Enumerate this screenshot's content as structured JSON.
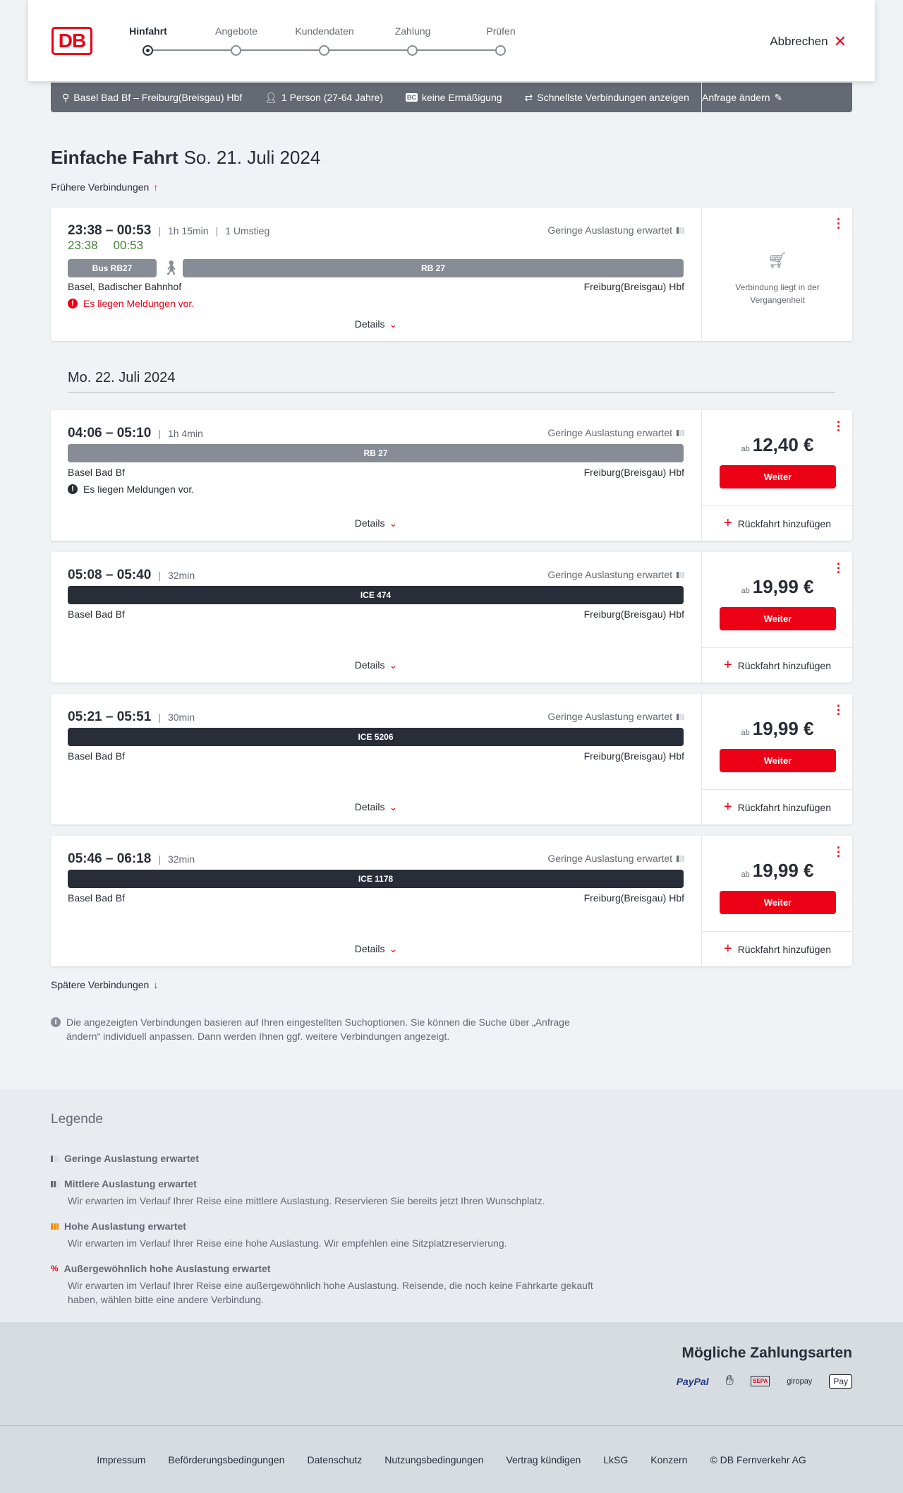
{
  "header": {
    "logo": "DB",
    "steps": [
      "Hinfahrt",
      "Angebote",
      "Kundendaten",
      "Zahlung",
      "Prüfen"
    ],
    "active_step": 0,
    "cancel": "Abbrechen"
  },
  "search_bar": {
    "route": "Basel Bad Bf – Freiburg(Breisgau) Hbf",
    "passengers": "1 Person (27-64 Jahre)",
    "discount_badge": "BC",
    "discount": "keine Ermäßigung",
    "fastest": "Schnellste Verbindungen anzeigen",
    "change": "Anfrage ändern"
  },
  "title": {
    "trip": "Einfache Fahrt",
    "date": "So. 21. Juli 2024"
  },
  "earlier": "Frühere Verbindungen",
  "later": "Spätere Verbindungen",
  "next_date": "Mo. 22. Juli 2024",
  "common": {
    "load": "Geringe Auslastung erwartet",
    "details": "Details",
    "ab": "ab",
    "weiter": "Weiter",
    "return": "Rückfahrt hinzufügen",
    "from": "Basel Bad Bf",
    "to": "Freiburg(Breisgau) Hbf",
    "message": "Es liegen Meldungen vor."
  },
  "past_connection": {
    "times": "23:38 – 00:53",
    "duration": "1h 15min",
    "changes": "1 Umstieg",
    "realtime_dep": "23:38",
    "realtime_arr": "00:53",
    "segments": [
      "Bus RB27",
      "RB 27"
    ],
    "from": "Basel, Badischer Bahnhof",
    "to": "Freiburg(Breisgau) Hbf",
    "message": "Es liegen Meldungen vor.",
    "past_note": "Verbindung liegt in der Vergangenheit"
  },
  "connections": [
    {
      "times": "04:06 – 05:10",
      "duration": "1h 4min",
      "train": "RB 27",
      "price": "12,40 €",
      "has_message": true,
      "color": "#878c96"
    },
    {
      "times": "05:08 – 05:40",
      "duration": "32min",
      "train": "ICE 474",
      "price": "19,99 €",
      "has_message": false,
      "color": "#282d37"
    },
    {
      "times": "05:21 – 05:51",
      "duration": "30min",
      "train": "ICE 5206",
      "price": "19,99 €",
      "has_message": false,
      "color": "#282d37"
    },
    {
      "times": "05:46 – 06:18",
      "duration": "32min",
      "train": "ICE 1178",
      "price": "19,99 €",
      "has_message": false,
      "color": "#282d37"
    }
  ],
  "info": "Die angezeigten Verbindungen basieren auf Ihren eingestellten Suchoptionen. Sie können die Suche über „Anfrage ändern“ individuell anpassen. Dann werden Ihnen ggf. weitere Verbindungen angezeigt.",
  "legend": {
    "title": "Legende",
    "items": [
      {
        "title": "Geringe Auslastung erwartet",
        "text": ""
      },
      {
        "title": "Mittlere Auslastung erwartet",
        "text": "Wir erwarten im Verlauf Ihrer Reise eine mittlere Auslastung. Reservieren Sie bereits jetzt Ihren Wunschplatz."
      },
      {
        "title": "Hohe Auslastung erwartet",
        "text": "Wir erwarten im Verlauf Ihrer Reise eine hohe Auslastung. Wir empfehlen eine Sitzplatzreservierung."
      },
      {
        "title": "Außergewöhnlich hohe Auslastung erwartet",
        "text": "Wir erwarten im Verlauf Ihrer Reise eine außergewöhnlich hohe Auslastung. Reisende, die noch keine Fahrkarte gekauft haben, wählen bitte eine andere Verbindung."
      }
    ]
  },
  "payment": {
    "title": "Mögliche Zahlungsarten",
    "methods": [
      "PayPal",
      "Kreditkarte",
      "SEPA",
      "giropay",
      "Pay"
    ]
  },
  "footer": [
    "Impressum",
    "Beförderungsbedingungen",
    "Datenschutz",
    "Nutzungsbedingungen",
    "Vertrag kündigen",
    "LkSG",
    "Konzern",
    "© DB Fernverkehr AG"
  ],
  "colors": {
    "brand": "#ec0016",
    "realtime": "#408335",
    "bar": "#646973"
  }
}
